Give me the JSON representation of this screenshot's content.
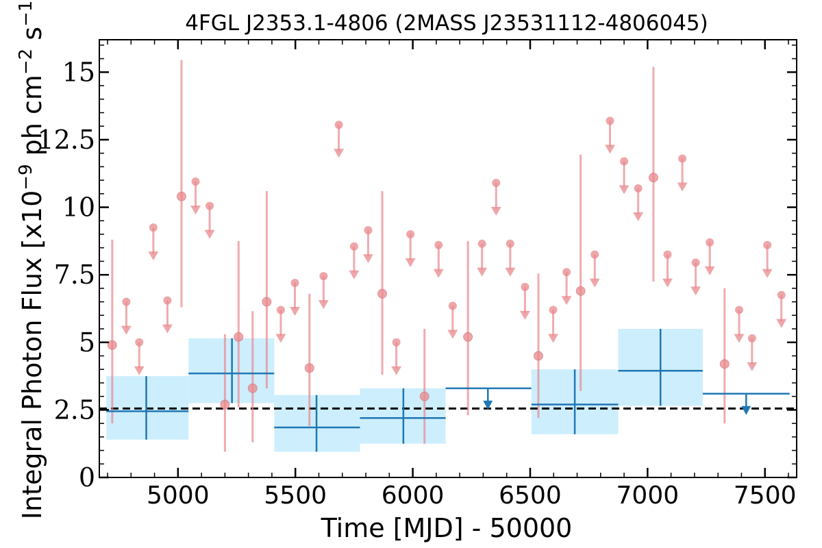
{
  "chart_data": {
    "type": "scatter",
    "title": "4FGL J2353.1-4806 (2MASS J23531112-4806045)",
    "xlabel": "Time [MJD] - 50000",
    "ylabel": "Integral Photon Flux [x10^-9 ph cm^-2 s^-1]",
    "ylabel_parts": {
      "pre": "Integral Photon Flux [x10",
      "exp1": "−9",
      "mid": " ph cm",
      "exp2": "−2",
      "mid2": " s",
      "exp3": "−1",
      "post": "]"
    },
    "xlim": [
      4665,
      7635
    ],
    "ylim": [
      0,
      16.2
    ],
    "xticks": [
      5000,
      5500,
      6000,
      6500,
      7000,
      7500
    ],
    "yticks": [
      0,
      2.5,
      5,
      7.5,
      10,
      12.5,
      15
    ],
    "ytick_labels": [
      "0",
      "2.5",
      "5",
      "7.5",
      "10",
      "12.5",
      "15"
    ],
    "reference_line": {
      "y": 2.55,
      "style": "dashed"
    },
    "colors": {
      "short_bins": "#e8888c",
      "long_bins": "#1f77b4",
      "long_band": "#cdeefd",
      "reference": "#000000"
    },
    "short_bin_detections": [
      {
        "x": 4720,
        "y": 4.9,
        "ylow": 2.0,
        "yhigh": 8.8
      },
      {
        "x": 5015,
        "y": 10.4,
        "ylow": 6.3,
        "yhigh": 15.45
      },
      {
        "x": 5200,
        "y": 2.7,
        "ylow": 0.95,
        "yhigh": 5.3
      },
      {
        "x": 5258,
        "y": 5.2,
        "ylow": 2.6,
        "yhigh": 8.75
      },
      {
        "x": 5318,
        "y": 3.3,
        "ylow": 1.3,
        "yhigh": 6.15
      },
      {
        "x": 5378,
        "y": 6.5,
        "ylow": 3.3,
        "yhigh": 10.6
      },
      {
        "x": 5560,
        "y": 4.05,
        "ylow": 1.9,
        "yhigh": 6.8
      },
      {
        "x": 5870,
        "y": 6.8,
        "ylow": 3.8,
        "yhigh": 10.6
      },
      {
        "x": 6050,
        "y": 3.0,
        "ylow": 1.25,
        "yhigh": 5.5
      },
      {
        "x": 6235,
        "y": 5.2,
        "ylow": 2.3,
        "yhigh": 8.75
      },
      {
        "x": 6535,
        "y": 4.5,
        "ylow": 2.2,
        "yhigh": 7.55
      },
      {
        "x": 6715,
        "y": 6.9,
        "ylow": 3.2,
        "yhigh": 11.95
      },
      {
        "x": 7025,
        "y": 11.1,
        "ylow": 7.25,
        "yhigh": 15.2
      },
      {
        "x": 7328,
        "y": 4.2,
        "ylow": 2.0,
        "yhigh": 7.0
      }
    ],
    "short_bin_upper_limits": [
      {
        "x": 4780,
        "y": 6.5
      },
      {
        "x": 4835,
        "y": 5.0
      },
      {
        "x": 4895,
        "y": 9.25
      },
      {
        "x": 4955,
        "y": 6.55
      },
      {
        "x": 5075,
        "y": 10.95
      },
      {
        "x": 5135,
        "y": 10.05
      },
      {
        "x": 5438,
        "y": 6.2
      },
      {
        "x": 5498,
        "y": 7.2
      },
      {
        "x": 5620,
        "y": 7.45
      },
      {
        "x": 5685,
        "y": 13.05
      },
      {
        "x": 5750,
        "y": 8.55
      },
      {
        "x": 5810,
        "y": 9.15
      },
      {
        "x": 5930,
        "y": 5.0
      },
      {
        "x": 5990,
        "y": 9.0
      },
      {
        "x": 6110,
        "y": 8.6
      },
      {
        "x": 6170,
        "y": 6.35
      },
      {
        "x": 6295,
        "y": 8.65
      },
      {
        "x": 6355,
        "y": 10.9
      },
      {
        "x": 6415,
        "y": 8.65
      },
      {
        "x": 6478,
        "y": 7.05
      },
      {
        "x": 6598,
        "y": 6.2
      },
      {
        "x": 6655,
        "y": 7.6
      },
      {
        "x": 6775,
        "y": 8.25
      },
      {
        "x": 6840,
        "y": 13.2
      },
      {
        "x": 6900,
        "y": 11.7
      },
      {
        "x": 6960,
        "y": 10.7
      },
      {
        "x": 7085,
        "y": 8.25
      },
      {
        "x": 7148,
        "y": 11.8
      },
      {
        "x": 7205,
        "y": 7.95
      },
      {
        "x": 7265,
        "y": 8.7
      },
      {
        "x": 7390,
        "y": 6.2
      },
      {
        "x": 7445,
        "y": 5.15
      },
      {
        "x": 7510,
        "y": 8.6
      },
      {
        "x": 7570,
        "y": 6.75
      }
    ],
    "long_bin_detections": [
      {
        "x0": 4695,
        "x1": 5045,
        "x": 4865,
        "y": 2.45,
        "ylow": 1.4,
        "yhigh": 3.75
      },
      {
        "x0": 5045,
        "x1": 5410,
        "x": 5230,
        "y": 3.85,
        "ylow": 2.75,
        "yhigh": 5.15
      },
      {
        "x0": 5410,
        "x1": 5775,
        "x": 5590,
        "y": 1.85,
        "ylow": 0.95,
        "yhigh": 3.05
      },
      {
        "x0": 5775,
        "x1": 6140,
        "x": 5960,
        "y": 2.2,
        "ylow": 1.25,
        "yhigh": 3.3
      },
      {
        "x0": 6505,
        "x1": 6875,
        "x": 6690,
        "y": 2.7,
        "ylow": 1.6,
        "yhigh": 4.0
      },
      {
        "x0": 6875,
        "x1": 7235,
        "x": 7055,
        "y": 3.95,
        "ylow": 2.65,
        "yhigh": 5.5
      }
    ],
    "long_bin_upper_limits": [
      {
        "x0": 6140,
        "x1": 6505,
        "xarrow": 6320,
        "y": 3.3
      },
      {
        "x0": 7235,
        "x1": 7605,
        "xarrow": 7420,
        "y": 3.1
      }
    ]
  }
}
